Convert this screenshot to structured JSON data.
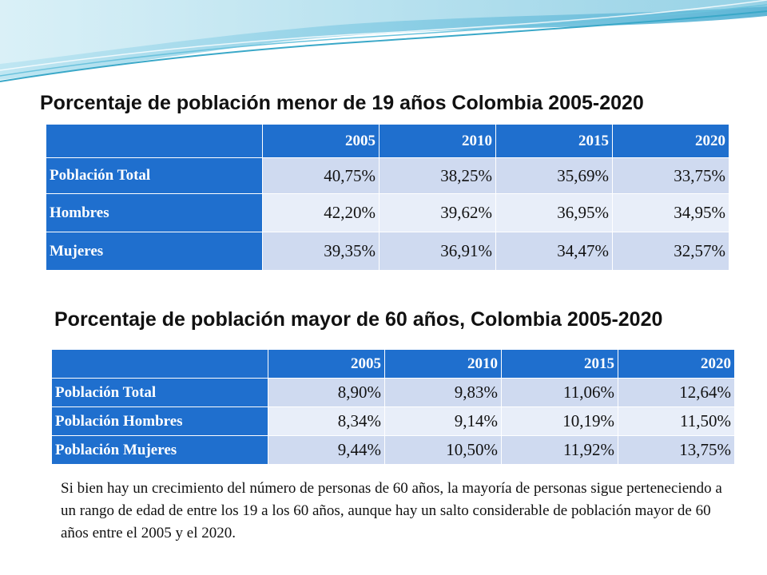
{
  "colors": {
    "header_blue": "#1f6fce",
    "row_light": "#cfdaf0",
    "row_lighter": "#e8eef9",
    "wave_teal": "#3aa8c8"
  },
  "section1": {
    "title": "Porcentaje de población menor de 19 años Colombia 2005-2020",
    "years": [
      "2005",
      "2010",
      "2015",
      "2020"
    ],
    "rows": [
      {
        "label": "Población Total",
        "values": [
          "40,75%",
          "38,25%",
          "35,69%",
          "33,75%"
        ]
      },
      {
        "label": "Hombres",
        "values": [
          "42,20%",
          "39,62%",
          "36,95%",
          "34,95%"
        ]
      },
      {
        "label": "Mujeres",
        "values": [
          "39,35%",
          "36,91%",
          "34,47%",
          "32,57%"
        ]
      }
    ]
  },
  "section2": {
    "title": "Porcentaje de población mayor de 60 años, Colombia 2005-2020",
    "years": [
      "2005",
      "2010",
      "2015",
      "2020"
    ],
    "rows": [
      {
        "label": "Población Total",
        "values": [
          "8,90%",
          "9,83%",
          "11,06%",
          "12,64%"
        ]
      },
      {
        "label": "Población Hombres",
        "values": [
          "8,34%",
          "9,14%",
          "10,19%",
          "11,50%"
        ]
      },
      {
        "label": "Población Mujeres",
        "values": [
          "9,44%",
          "10,50%",
          "11,92%",
          "13,75%"
        ]
      }
    ]
  },
  "note": "Si bien hay un crecimiento del número de personas de 60 años, la mayoría de personas sigue perteneciendo a un rango de edad de entre los 19 a los 60 años, aunque hay un salto considerable de población mayor de 60 años entre el 2005 y el 2020."
}
